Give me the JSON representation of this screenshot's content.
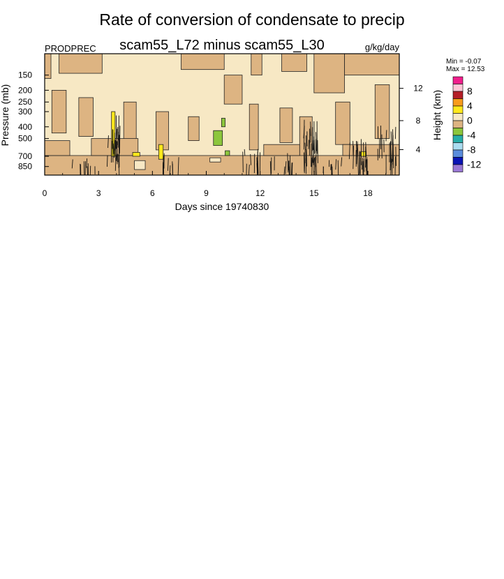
{
  "chart_data": {
    "type": "heatmap",
    "title": "Rate of conversion of condensate to precip",
    "subtitle": "scam55_L72 minus scam55_L30",
    "left_label": "PRODPREC",
    "units": "g/kg/day",
    "xlabel": "Days since 19740830",
    "ylabel": "Pressure (mb)",
    "y2label": "Height (km)",
    "xlim": [
      0,
      19.75
    ],
    "x_ticks": [
      0,
      3,
      6,
      9,
      12,
      15,
      18
    ],
    "x_tick_labels": [
      "0",
      "3",
      "6",
      "9",
      "12",
      "15",
      "18"
    ],
    "y_scale": "log",
    "ylim": [
      1000,
      100
    ],
    "y_ticks": [
      150,
      200,
      250,
      300,
      400,
      500,
      700,
      850
    ],
    "y_tick_labels": [
      "150",
      "200",
      "250",
      "300",
      "400",
      "500",
      "700",
      "850"
    ],
    "y2_ticks_km": [
      4,
      8,
      12
    ],
    "y2_tick_labels": [
      "4",
      "8",
      "12"
    ],
    "min_label": "Min =  -0.07",
    "max_label": "Max =  12.53",
    "min": -0.07,
    "max": 12.53,
    "colorbar": {
      "levels": [
        -12,
        -10,
        -8,
        -6,
        -4,
        -2,
        0,
        2,
        4,
        6,
        8,
        10
      ],
      "labels": [
        "8",
        "4",
        "0",
        "-4",
        "-8",
        "-12"
      ],
      "colors": [
        "#f01e8c",
        "#ffc6d6",
        "#b41e28",
        "#f89c1c",
        "#ffe81c",
        "#f7e8c4",
        "#ddb482",
        "#8cc63c",
        "#28ada8",
        "#aadcf0",
        "#5a8cdc",
        "#0a14b4",
        "#9a78d4"
      ]
    },
    "regions": [
      {
        "name": "zero-contour-background",
        "value": 0
      },
      {
        "name": "weak-positive-upper",
        "value": 0.5
      },
      {
        "name": "weak-positive-lower",
        "value": 0.5
      },
      {
        "name": "moderate-positive-convective",
        "value": 3
      },
      {
        "name": "weak-negative",
        "value": -0.05
      }
    ]
  }
}
